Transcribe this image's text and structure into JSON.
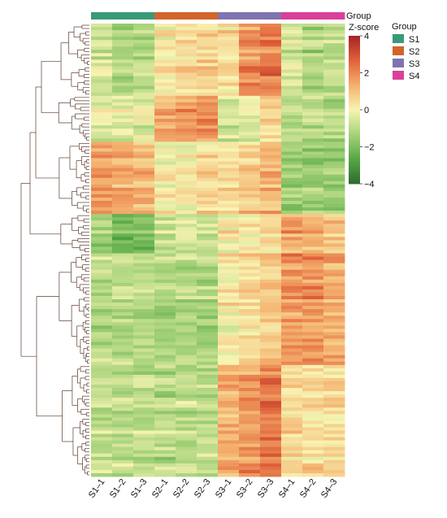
{
  "chart_data": {
    "type": "heatmap",
    "title": "",
    "samples": [
      "S1–1",
      "S1–2",
      "S1–3",
      "S2–1",
      "S2–2",
      "S2–3",
      "S3–1",
      "S3–2",
      "S3–3",
      "S4–1",
      "S4–2",
      "S4–3"
    ],
    "sample_groups": [
      "S1",
      "S1",
      "S1",
      "S2",
      "S2",
      "S2",
      "S3",
      "S3",
      "S3",
      "S4",
      "S4",
      "S4"
    ],
    "annotation_label": "Group",
    "legend": {
      "group_title": "Group",
      "groups": [
        {
          "name": "S1",
          "color": "#3a9a78"
        },
        {
          "name": "S2",
          "color": "#d2652a"
        },
        {
          "name": "S3",
          "color": "#8074b0"
        },
        {
          "name": "S4",
          "color": "#d9409a"
        }
      ]
    },
    "colorbar": {
      "title": "Z-score",
      "range": [
        -4,
        4
      ],
      "ticks": [
        4,
        2,
        0,
        -2,
        -4
      ],
      "tick_labels": [
        "4",
        "2",
        "0",
        "−2",
        "−4"
      ],
      "colors": [
        "#2f6b30",
        "#55a845",
        "#a6d27a",
        "#f8f4b3",
        "#f4b06d",
        "#e0613a",
        "#a52226"
      ]
    },
    "row_clusters": [
      {
        "rows": 22,
        "pattern": [
          -0.6,
          -1.2,
          -1.0,
          0.2,
          0.5,
          0.6,
          0.4,
          1.8,
          2.2,
          -0.6,
          -1.2,
          -0.9
        ]
      },
      {
        "rows": 14,
        "pattern": [
          -0.4,
          -0.2,
          -0.3,
          1.4,
          1.8,
          2.0,
          -0.5,
          -0.3,
          0.6,
          -1.0,
          -0.8,
          -1.0
        ]
      },
      {
        "rows": 22,
        "pattern": [
          1.6,
          1.4,
          1.2,
          0.2,
          0.0,
          0.4,
          0.5,
          0.8,
          1.2,
          -1.4,
          -1.4,
          -1.6
        ]
      },
      {
        "rows": 12,
        "pattern": [
          -1.4,
          -2.2,
          -2.0,
          -0.6,
          -0.3,
          -0.6,
          0.2,
          0.5,
          0.6,
          1.6,
          1.4,
          1.2
        ]
      },
      {
        "rows": 34,
        "pattern": [
          -1.0,
          -0.9,
          -0.9,
          -1.1,
          -1.0,
          -1.1,
          0.3,
          0.6,
          0.9,
          1.8,
          1.9,
          1.5
        ]
      },
      {
        "rows": 34,
        "pattern": [
          -0.9,
          -0.9,
          -0.9,
          -1.0,
          -0.9,
          -0.9,
          1.4,
          1.7,
          2.3,
          0.6,
          0.5,
          0.6
        ]
      }
    ]
  }
}
